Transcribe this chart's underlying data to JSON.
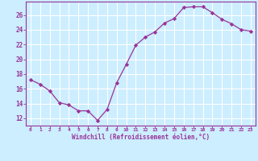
{
  "x": [
    0,
    1,
    2,
    3,
    4,
    5,
    6,
    7,
    8,
    9,
    10,
    11,
    12,
    13,
    14,
    15,
    16,
    17,
    18,
    19,
    20,
    21,
    22,
    23
  ],
  "y": [
    17.2,
    16.6,
    15.7,
    14.1,
    13.8,
    13.0,
    13.0,
    11.7,
    13.2,
    16.8,
    19.3,
    21.9,
    23.0,
    23.7,
    24.9,
    25.5,
    27.0,
    27.1,
    27.1,
    26.3,
    25.4,
    24.8,
    24.0,
    23.8
  ],
  "line_color": "#993399",
  "marker": "D",
  "marker_size": 2.2,
  "bg_color": "#cceeff",
  "grid_color": "#ffffff",
  "xlabel": "Windchill (Refroidissement éolien,°C)",
  "xlabel_color": "#993399",
  "tick_color": "#993399",
  "yticks": [
    12,
    14,
    16,
    18,
    20,
    22,
    24,
    26
  ],
  "ylim": [
    11.0,
    27.8
  ],
  "xlim": [
    -0.5,
    23.5
  ],
  "xticks": [
    0,
    1,
    2,
    3,
    4,
    5,
    6,
    7,
    8,
    9,
    10,
    11,
    12,
    13,
    14,
    15,
    16,
    17,
    18,
    19,
    20,
    21,
    22,
    23
  ]
}
